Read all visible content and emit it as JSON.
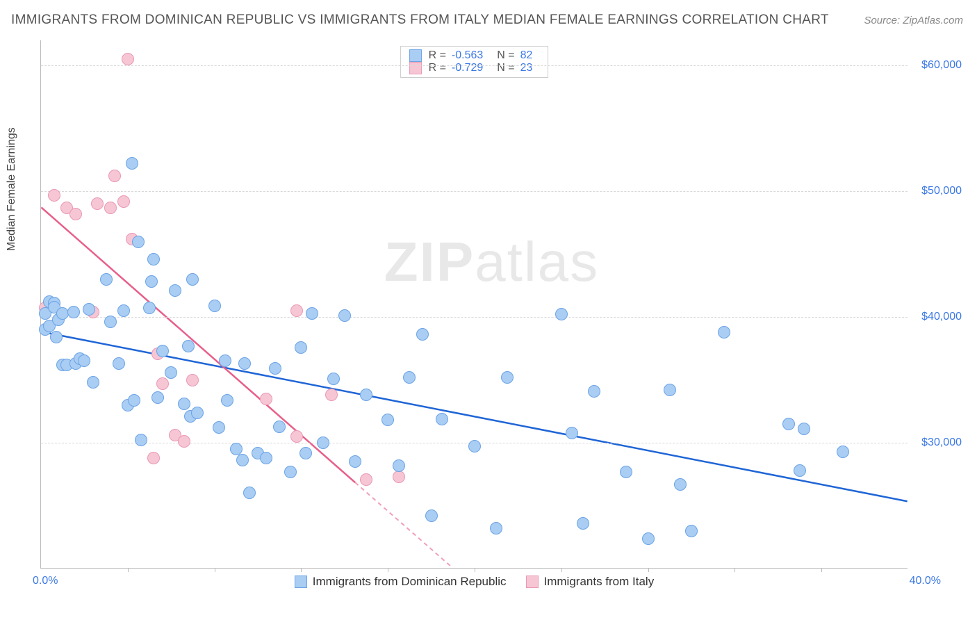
{
  "header": {
    "title": "IMMIGRANTS FROM DOMINICAN REPUBLIC VS IMMIGRANTS FROM ITALY MEDIAN FEMALE EARNINGS CORRELATION CHART",
    "source": "Source: ZipAtlas.com"
  },
  "watermark": {
    "bold": "ZIP",
    "rest": "atlas"
  },
  "chart": {
    "type": "scatter",
    "ylabel": "Median Female Earnings",
    "xlim": [
      0,
      40
    ],
    "ylim": [
      20000,
      62000
    ],
    "xlabel_min": "0.0%",
    "xlabel_max": "40.0%",
    "y_gridlines": [
      30000,
      40000,
      50000,
      60000
    ],
    "y_tick_labels": [
      "$30,000",
      "$40,000",
      "$50,000",
      "$60,000"
    ],
    "x_minor_ticks": [
      4,
      8,
      12,
      16,
      20,
      24,
      28,
      32,
      36
    ],
    "background_color": "#ffffff",
    "grid_color": "#d8d8d8",
    "axis_color": "#bbbbbb",
    "tick_label_color": "#3b78e7",
    "point_radius": 9,
    "series": [
      {
        "name": "Immigrants from Dominican Republic",
        "fill": "#a9cdf3",
        "stroke": "#6ba3e6",
        "line_color": "#1f65d6",
        "r_label": "R =",
        "r_value": "-0.563",
        "n_label": "N =",
        "n_value": "82",
        "regression": {
          "x1": 0,
          "y1": 38800,
          "x2": 40,
          "y2": 25300
        },
        "points": [
          [
            0.2,
            40300
          ],
          [
            0.2,
            39000
          ],
          [
            0.4,
            41200
          ],
          [
            0.4,
            39300
          ],
          [
            0.6,
            41100
          ],
          [
            0.6,
            40800
          ],
          [
            0.7,
            38400
          ],
          [
            0.8,
            39800
          ],
          [
            1.0,
            40300
          ],
          [
            1.0,
            36200
          ],
          [
            1.2,
            36200
          ],
          [
            1.5,
            40400
          ],
          [
            1.6,
            36300
          ],
          [
            1.8,
            36700
          ],
          [
            2.0,
            36500
          ],
          [
            2.2,
            40600
          ],
          [
            2.4,
            34800
          ],
          [
            3.0,
            43000
          ],
          [
            3.2,
            39600
          ],
          [
            3.6,
            36300
          ],
          [
            3.8,
            40500
          ],
          [
            4.0,
            33000
          ],
          [
            4.2,
            52200
          ],
          [
            4.3,
            33400
          ],
          [
            4.5,
            46000
          ],
          [
            4.6,
            30200
          ],
          [
            5.0,
            40700
          ],
          [
            5.1,
            42800
          ],
          [
            5.2,
            44600
          ],
          [
            5.4,
            33600
          ],
          [
            5.6,
            37300
          ],
          [
            6.0,
            35600
          ],
          [
            6.2,
            42100
          ],
          [
            6.6,
            33100
          ],
          [
            6.8,
            37700
          ],
          [
            6.9,
            32100
          ],
          [
            7.0,
            43000
          ],
          [
            7.2,
            32400
          ],
          [
            8.0,
            40900
          ],
          [
            8.2,
            31200
          ],
          [
            8.5,
            36500
          ],
          [
            8.6,
            33400
          ],
          [
            9.0,
            29500
          ],
          [
            9.3,
            28600
          ],
          [
            9.4,
            36300
          ],
          [
            9.6,
            26000
          ],
          [
            10.0,
            29200
          ],
          [
            10.4,
            28800
          ],
          [
            10.8,
            35900
          ],
          [
            11.0,
            31300
          ],
          [
            11.5,
            27700
          ],
          [
            12.0,
            37600
          ],
          [
            12.2,
            29200
          ],
          [
            12.5,
            40300
          ],
          [
            13.0,
            30000
          ],
          [
            13.5,
            35100
          ],
          [
            14.0,
            40100
          ],
          [
            14.5,
            28500
          ],
          [
            15.0,
            33800
          ],
          [
            16.0,
            31800
          ],
          [
            16.5,
            28200
          ],
          [
            17.0,
            35200
          ],
          [
            17.6,
            38600
          ],
          [
            18.0,
            24200
          ],
          [
            18.5,
            31900
          ],
          [
            20.0,
            29700
          ],
          [
            21.0,
            23200
          ],
          [
            21.5,
            35200
          ],
          [
            24.0,
            40200
          ],
          [
            24.5,
            30800
          ],
          [
            25.0,
            23600
          ],
          [
            25.5,
            34100
          ],
          [
            27.0,
            27700
          ],
          [
            28.0,
            22400
          ],
          [
            29.0,
            34200
          ],
          [
            29.5,
            26700
          ],
          [
            30.0,
            23000
          ],
          [
            31.5,
            38800
          ],
          [
            34.5,
            31500
          ],
          [
            35.0,
            27800
          ],
          [
            35.2,
            31100
          ],
          [
            37.0,
            29300
          ]
        ]
      },
      {
        "name": "Immigrants from Italy",
        "fill": "#f6c6d4",
        "stroke": "#ea98b3",
        "line_color": "#e85f8a",
        "r_label": "R =",
        "r_value": "-0.729",
        "n_label": "N =",
        "n_value": "23",
        "regression": {
          "x1": 0,
          "y1": 48700,
          "x2": 19,
          "y2": 20000
        },
        "regression_dashed_from_x": 14.5,
        "points": [
          [
            0.2,
            40700
          ],
          [
            0.6,
            49700
          ],
          [
            1.2,
            48700
          ],
          [
            1.6,
            48200
          ],
          [
            2.4,
            40400
          ],
          [
            2.6,
            49000
          ],
          [
            3.2,
            48700
          ],
          [
            3.4,
            51200
          ],
          [
            3.8,
            49200
          ],
          [
            4.0,
            60500
          ],
          [
            4.2,
            46200
          ],
          [
            5.2,
            28800
          ],
          [
            5.4,
            37100
          ],
          [
            5.6,
            34700
          ],
          [
            6.2,
            30600
          ],
          [
            6.6,
            30100
          ],
          [
            7.0,
            35000
          ],
          [
            10.4,
            33500
          ],
          [
            11.8,
            40500
          ],
          [
            11.8,
            30500
          ],
          [
            13.4,
            33800
          ],
          [
            15.0,
            27100
          ],
          [
            16.5,
            27300
          ]
        ]
      }
    ],
    "bottom_legend": [
      {
        "swatch_fill": "#a9cdf3",
        "swatch_stroke": "#6ba3e6",
        "label": "Immigrants from Dominican Republic"
      },
      {
        "swatch_fill": "#f6c6d4",
        "swatch_stroke": "#ea98b3",
        "label": "Immigrants from Italy"
      }
    ]
  }
}
